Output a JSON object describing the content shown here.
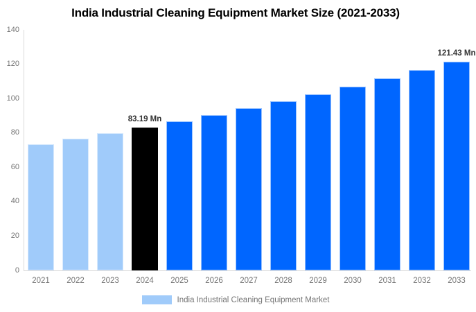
{
  "title": "India Industrial Cleaning Equipment Market Size (2021-2033)",
  "legend": {
    "label": "India Industrial Cleaning Equipment Market"
  },
  "colors": {
    "historical_bar": "#a0cbfa",
    "current_bar": "#000000",
    "forecast_bar": "#0066ff",
    "axis_line": "#d9d9d9",
    "axis_text": "#757575",
    "data_label_text": "#333333",
    "title_text": "#000000"
  },
  "chart_data": {
    "type": "bar",
    "title": "India Industrial Cleaning Equipment Market Size (2021-2033)",
    "unit": "Mn",
    "categories": [
      "2021",
      "2022",
      "2023",
      "2024",
      "2025",
      "2026",
      "2027",
      "2028",
      "2029",
      "2030",
      "2031",
      "2032",
      "2033"
    ],
    "values": [
      73.32,
      76.47,
      79.76,
      83.19,
      86.76,
      90.48,
      94.37,
      98.42,
      102.64,
      107.05,
      111.64,
      116.43,
      121.43
    ],
    "segments": [
      "historical",
      "historical",
      "historical",
      "current",
      "forecast",
      "forecast",
      "forecast",
      "forecast",
      "forecast",
      "forecast",
      "forecast",
      "forecast",
      "forecast"
    ],
    "data_labels": {
      "2024": "83.19 Mn",
      "2033": "121.43 Mn"
    },
    "xlabel": "",
    "ylabel": "",
    "ylim": [
      0,
      140
    ],
    "yticks": [
      0,
      20,
      40,
      60,
      80,
      100,
      120,
      140
    ],
    "grid": false,
    "legend_position": "bottom",
    "legend_entries": [
      "India Industrial Cleaning Equipment Market"
    ]
  }
}
